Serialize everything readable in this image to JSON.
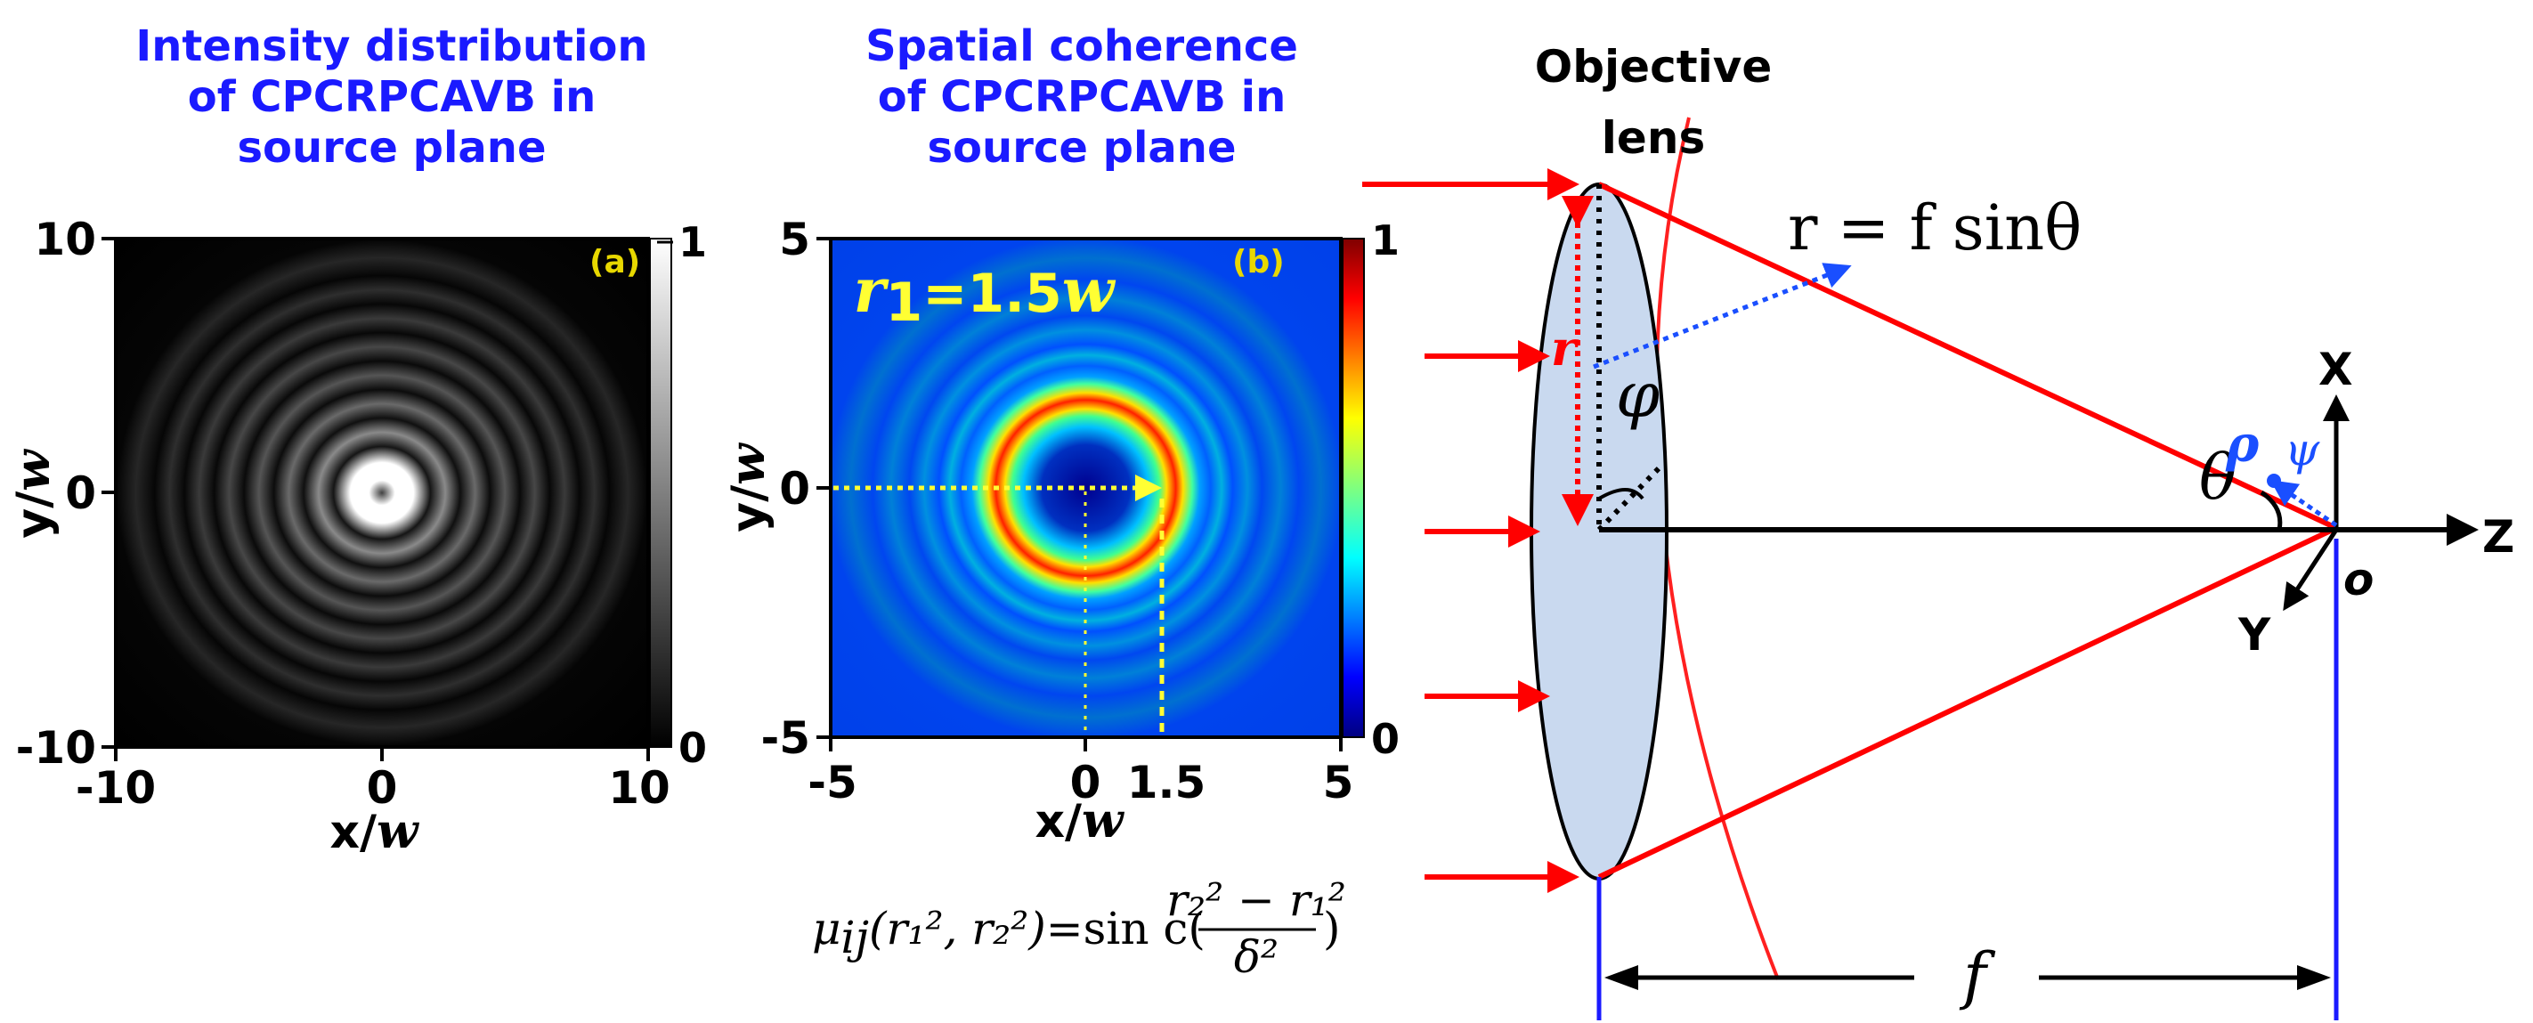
{
  "panel_a": {
    "title": [
      "Intensity distribution",
      "of CPCRPCAVB in",
      "source plane"
    ],
    "tag": "(a)",
    "x_ticks": [
      "-10",
      "0",
      "10"
    ],
    "y_ticks": [
      "10",
      "0",
      "-10"
    ],
    "xlabel_prefix": "x/",
    "ylabel_prefix": "y/",
    "axis_symbol": "w",
    "colorbar_ticks": [
      "1",
      "0"
    ],
    "colormap": "gray"
  },
  "panel_b": {
    "title": [
      "Spatial coherence",
      "of CPCRPCAVB in",
      "source plane"
    ],
    "tag": "(b)",
    "x_ticks": [
      "-5",
      "0",
      "1.5",
      "5"
    ],
    "y_ticks": [
      "5",
      "0",
      "-5"
    ],
    "xlabel_prefix": "x/",
    "ylabel_prefix": "y/",
    "axis_symbol": "w",
    "colorbar_ticks": [
      "1",
      "0"
    ],
    "colormap": "jet",
    "r1_symbol": "r",
    "r1_sub": "1",
    "r1_value": "=1.5",
    "r1_unit": "w",
    "marked_point": 1.5,
    "equation": {
      "mu": "μ",
      "mu_sub": "ij",
      "args": "(r₁², r₂²)",
      "equals": "=sin c(",
      "numerator": "r₂² − r₁²",
      "denominator": "δ²",
      "close": ")"
    }
  },
  "optics": {
    "lens_label": [
      "Objective",
      "lens"
    ],
    "formula": "r = f sinθ",
    "r_label": "r",
    "phi_label": "φ",
    "theta_label": "θ",
    "rho_label": "ρ",
    "psi_label": "ψ",
    "x_axis": "X",
    "y_axis": "Y",
    "z_axis": "Z",
    "origin": "o",
    "focal": "f",
    "colors": {
      "beam": "#ff0000",
      "lens_fill": "#c9d9ef",
      "focal_marker": "#1a1aff",
      "sphere": "#ff2020",
      "radius_arrow": "#1a4fff"
    }
  }
}
